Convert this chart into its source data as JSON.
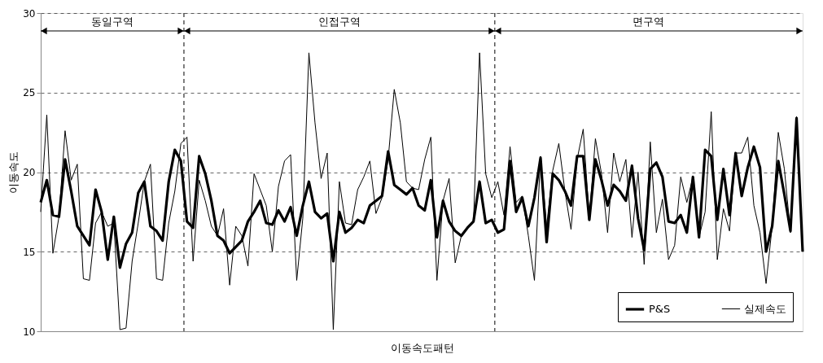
{
  "chart_data": {
    "type": "line",
    "xlabel": "이동속도패턴",
    "ylabel": "이동속도",
    "categories": [
      null,
      null,
      null,
      null,
      null,
      null,
      null,
      null,
      null,
      null,
      null,
      null,
      null,
      null,
      null,
      null,
      null,
      null,
      null,
      null,
      null,
      null,
      null,
      null,
      null,
      null,
      null,
      null,
      null,
      null,
      null,
      null,
      null,
      null,
      null,
      null,
      null,
      null,
      null,
      null,
      null,
      null,
      null,
      null,
      null,
      null,
      null,
      null,
      null,
      null,
      null,
      null,
      null,
      null,
      null,
      null,
      null,
      null,
      null,
      null,
      null,
      null,
      null,
      null,
      null,
      null,
      null,
      null,
      null,
      null,
      null,
      null,
      null,
      null,
      null,
      null,
      null,
      null,
      null,
      null,
      null,
      null,
      null,
      null,
      null,
      null,
      null,
      null,
      null,
      null,
      null,
      null,
      null,
      null,
      null,
      null,
      null,
      null,
      null,
      null,
      null,
      null,
      null,
      null,
      null,
      null,
      null,
      null,
      null,
      null,
      null,
      null,
      null,
      null,
      null,
      null,
      null,
      null,
      null,
      null,
      null,
      null,
      null,
      null,
      null,
      null
    ],
    "ylim": [
      10,
      30
    ],
    "yticks": [
      10,
      15,
      20,
      25,
      30
    ],
    "tick_labels": "y",
    "grid": "y",
    "legend": "bottom right",
    "marker": "none",
    "line_style": "solid",
    "series": [
      {
        "name": "P&S",
        "color": "#000000",
        "values": [
          18.1,
          19.5,
          17.3,
          17.2,
          20.8,
          18.8,
          16.6,
          16.0,
          15.4,
          18.9,
          17.5,
          14.5,
          17.2,
          14.0,
          15.5,
          16.2,
          18.7,
          19.4,
          16.6,
          16.3,
          15.7,
          19.4,
          21.4,
          20.7,
          16.9,
          16.5,
          21.0,
          19.9,
          18.2,
          16.0,
          15.7,
          14.9,
          15.3,
          15.7,
          16.9,
          17.5,
          18.2,
          16.8,
          16.7,
          17.6,
          16.9,
          17.8,
          16.0,
          17.9,
          19.4,
          17.5,
          17.1,
          17.4,
          14.4,
          17.5,
          16.2,
          16.5,
          17.0,
          16.8,
          17.9,
          18.2,
          18.5,
          21.3,
          19.2,
          18.9,
          18.6,
          19.0,
          17.9,
          17.6,
          19.5,
          15.9,
          18.2,
          16.9,
          16.3,
          16.0,
          16.5,
          16.9,
          19.4,
          16.8,
          17.0,
          16.2,
          16.4,
          20.7,
          17.5,
          18.4,
          16.6,
          18.4,
          20.9,
          15.6,
          19.9,
          19.5,
          18.8,
          17.9,
          21.0,
          21.0,
          17.0,
          20.8,
          19.5,
          17.9,
          19.2,
          18.8,
          18.2,
          20.4,
          17.1,
          15.1,
          20.2,
          20.6,
          19.7,
          16.9,
          16.8,
          17.3,
          16.2,
          19.7,
          15.9,
          21.4,
          21.0,
          17.0,
          20.2,
          17.3,
          21.2,
          18.5,
          20.3,
          21.6,
          20.3,
          15.0,
          16.6,
          20.7,
          18.6,
          16.3,
          23.4,
          15.0
        ]
      },
      {
        "name": "실제속도",
        "color": "#000000",
        "values": [
          17.5,
          23.6,
          14.9,
          17.2,
          22.6,
          19.5,
          20.5,
          13.3,
          13.2,
          16.8,
          17.5,
          16.6,
          16.8,
          10.1,
          10.2,
          14.4,
          16.8,
          19.4,
          20.5,
          13.3,
          13.2,
          16.8,
          18.8,
          21.8,
          22.2,
          14.4,
          19.5,
          18.2,
          16.6,
          16.0,
          17.7,
          12.9,
          16.6,
          16.0,
          14.1,
          19.9,
          18.9,
          17.9,
          15.0,
          19.1,
          20.7,
          21.1,
          13.2,
          17.1,
          27.5,
          23.1,
          19.6,
          21.2,
          10.1,
          19.4,
          16.8,
          16.7,
          18.9,
          19.7,
          20.7,
          17.4,
          18.4,
          20.8,
          25.2,
          23.1,
          19.4,
          19.0,
          18.9,
          20.8,
          22.2,
          13.2,
          18.2,
          19.6,
          14.3,
          16.0,
          16.5,
          16.9,
          27.5,
          19.9,
          18.4,
          19.4,
          17.3,
          21.6,
          18.1,
          18.5,
          16.0,
          13.2,
          21.0,
          16.6,
          20.1,
          21.8,
          18.8,
          16.4,
          20.8,
          22.7,
          17.1,
          22.1,
          19.9,
          16.2,
          21.2,
          19.4,
          20.8,
          15.9,
          20.0,
          14.2,
          21.9,
          16.2,
          18.3,
          14.5,
          15.4,
          19.7,
          18.1,
          19.7,
          15.9,
          17.5,
          23.8,
          14.5,
          17.7,
          16.3,
          21.2,
          21.2,
          22.2,
          17.9,
          16.2,
          13.0,
          16.6,
          22.5,
          20.2,
          16.2,
          23.5,
          15.0
        ]
      }
    ],
    "annotations": [
      "동일구역",
      "인접구역",
      "면구역"
    ]
  }
}
